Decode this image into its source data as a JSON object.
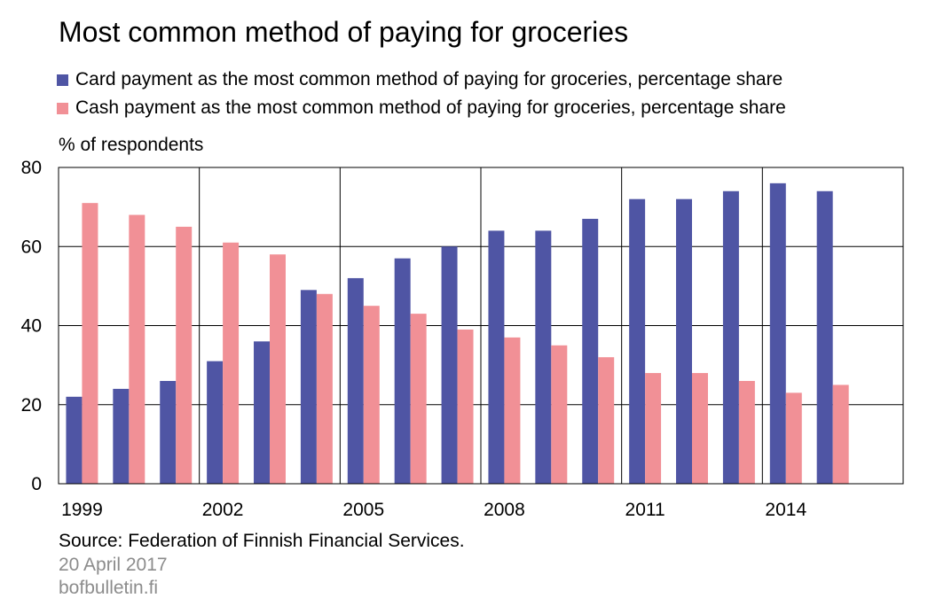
{
  "chart_data": {
    "type": "bar",
    "title": "Most common method of paying for groceries",
    "ylabel": "% of respondents",
    "xlabel": "",
    "ylim": [
      0,
      80
    ],
    "yticks": [
      0,
      20,
      40,
      60,
      80
    ],
    "grid": true,
    "legend_position": "top-left",
    "categories": [
      "1999",
      "2000",
      "2001",
      "2002",
      "2003",
      "2004",
      "2005",
      "2006",
      "2007",
      "2008",
      "2009",
      "2010",
      "2011",
      "2012",
      "2013",
      "2014",
      "2015"
    ],
    "x_tick_labels": [
      "1999",
      "2002",
      "2005",
      "2008",
      "2011",
      "2014"
    ],
    "series": [
      {
        "name": "Card payment as the most common method of paying for groceries, percentage share",
        "color": "#4f55a4",
        "values": [
          22,
          24,
          26,
          31,
          36,
          49,
          52,
          57,
          60,
          64,
          64,
          67,
          72,
          72,
          74,
          76,
          74
        ]
      },
      {
        "name": "Cash payment as the most common method of paying for groceries, percentage share",
        "color": "#f19096",
        "values": [
          71,
          68,
          65,
          61,
          58,
          48,
          45,
          43,
          39,
          37,
          35,
          32,
          28,
          28,
          26,
          23,
          25
        ]
      }
    ]
  },
  "footer": {
    "source": "Source: Federation of Finnish Financial Services.",
    "date": "20 April 2017",
    "site": "bofbulletin.fi"
  }
}
